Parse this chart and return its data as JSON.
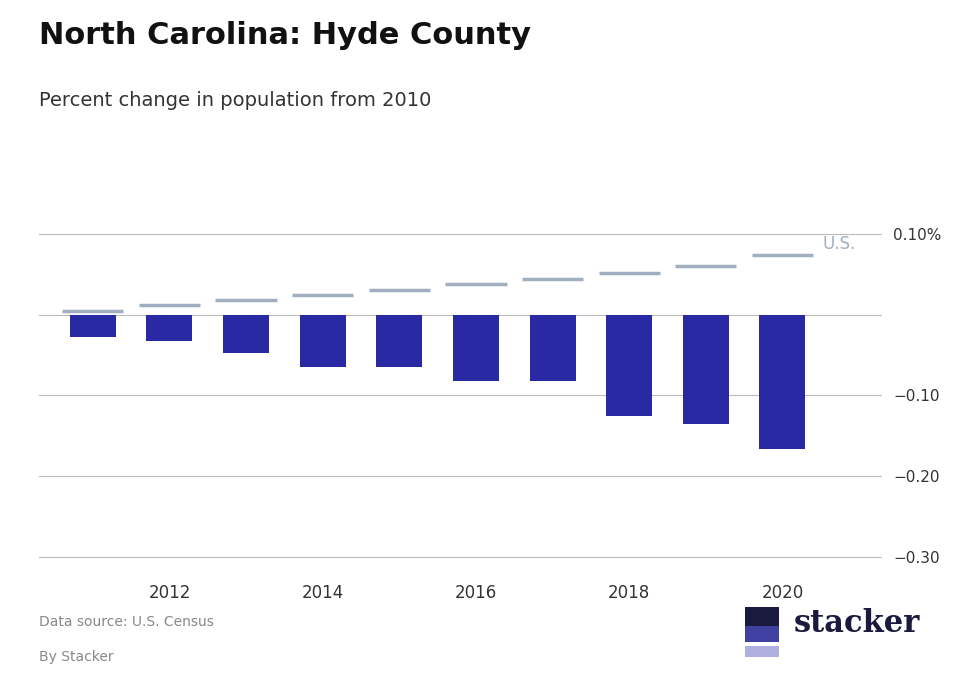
{
  "title": "North Carolina: Hyde County",
  "subtitle": "Percent change in population from 2010",
  "source_line1": "Data source: U.S. Census",
  "source_line2": "By Stacker",
  "bar_years": [
    2011,
    2012,
    2013,
    2014,
    2015,
    2016,
    2017,
    2018,
    2019,
    2020
  ],
  "bar_values": [
    -0.028,
    -0.033,
    -0.047,
    -0.065,
    -0.065,
    -0.082,
    -0.082,
    -0.125,
    -0.135,
    -0.1667
  ],
  "bar_color": "#2929A3",
  "us_years": [
    2011,
    2012,
    2013,
    2014,
    2015,
    2016,
    2017,
    2018,
    2019,
    2020
  ],
  "us_values": [
    0.004,
    0.012,
    0.018,
    0.024,
    0.03,
    0.038,
    0.044,
    0.052,
    0.06,
    0.074
  ],
  "us_line_color": "#a0aec0",
  "us_label": "U.S.",
  "us_label_color": "#a0aec0",
  "ylim": [
    -0.32,
    0.13
  ],
  "yticks": [
    0.1,
    0.0,
    -0.1,
    -0.2,
    -0.3
  ],
  "background_color": "#ffffff",
  "title_fontsize": 22,
  "subtitle_fontsize": 14,
  "stacker_dark": "#1a1a3e",
  "stacker_mid": "#4040a0",
  "stacker_light": "#b0b0e0"
}
